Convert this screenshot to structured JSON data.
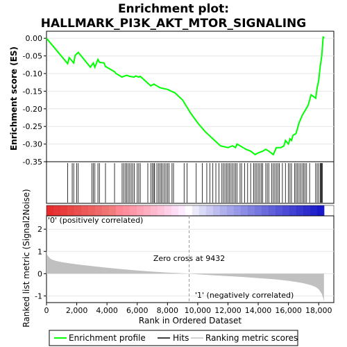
{
  "chart_data": {
    "type": "line",
    "title_line1": "Enrichment plot:",
    "title_line2": "HALLMARK_PI3K_AKT_MTOR_SIGNALING",
    "es_panel": {
      "ylabel": "Enrichment score (ES)",
      "ylim": [
        -0.35,
        0.02
      ],
      "yticks": [
        0.0,
        -0.05,
        -0.1,
        -0.15,
        -0.2,
        -0.25,
        -0.3,
        -0.35
      ],
      "ytick_labels": [
        "0.00",
        "-0.05",
        "-0.10",
        "-0.15",
        "-0.20",
        "-0.25",
        "-0.30",
        "-0.35"
      ],
      "grid": true,
      "series": {
        "name": "Enrichment profile",
        "color": "#00ff00",
        "x": [
          0,
          1400,
          1500,
          1800,
          1900,
          2100,
          2900,
          3100,
          3200,
          3400,
          3500,
          3800,
          3900,
          4500,
          4600,
          5000,
          5100,
          5300,
          5500,
          5800,
          5900,
          6100,
          6200,
          6900,
          7100,
          7300,
          7500,
          8000,
          8500,
          9000,
          9500,
          10000,
          10500,
          11000,
          11500,
          12000,
          12300,
          12500,
          12600,
          12800,
          13000,
          13200,
          13500,
          13800,
          14000,
          14300,
          14500,
          14700,
          15000,
          15200,
          15500,
          15700,
          15800,
          16000,
          16100,
          16200,
          16300,
          16500,
          16700,
          16900,
          17100,
          17300,
          17500,
          17800,
          17900,
          18000,
          18100,
          18200,
          18300,
          18350
        ],
        "y": [
          0.0,
          -0.072,
          -0.055,
          -0.07,
          -0.048,
          -0.04,
          -0.082,
          -0.07,
          -0.082,
          -0.06,
          -0.068,
          -0.07,
          -0.08,
          -0.095,
          -0.1,
          -0.11,
          -0.108,
          -0.105,
          -0.108,
          -0.11,
          -0.107,
          -0.11,
          -0.108,
          -0.135,
          -0.13,
          -0.135,
          -0.14,
          -0.145,
          -0.155,
          -0.175,
          -0.21,
          -0.24,
          -0.265,
          -0.285,
          -0.305,
          -0.31,
          -0.305,
          -0.31,
          -0.3,
          -0.305,
          -0.31,
          -0.315,
          -0.32,
          -0.33,
          -0.325,
          -0.32,
          -0.315,
          -0.32,
          -0.33,
          -0.31,
          -0.31,
          -0.305,
          -0.29,
          -0.3,
          -0.285,
          -0.29,
          -0.275,
          -0.27,
          -0.24,
          -0.22,
          -0.205,
          -0.19,
          -0.16,
          -0.17,
          -0.14,
          -0.12,
          -0.08,
          -0.05,
          0.005,
          0.0
        ]
      }
    },
    "hits_panel": {
      "name": "Hits",
      "hit_positions": [
        1400,
        1700,
        1800,
        2000,
        2100,
        3000,
        3100,
        3200,
        3400,
        3500,
        3900,
        4500,
        5000,
        5100,
        5200,
        5300,
        5400,
        5500,
        5600,
        5700,
        5800,
        6000,
        6100,
        6200,
        6700,
        6900,
        7000,
        7100,
        7150,
        7300,
        7400,
        7500,
        7600,
        7700,
        7800,
        7900,
        8000,
        8100,
        8300,
        8400,
        9100,
        9300,
        9900,
        10300,
        10600,
        10800,
        11000,
        11200,
        11400,
        11600,
        11700,
        11800,
        11900,
        12000,
        12100,
        12200,
        12300,
        12400,
        12500,
        12600,
        12800,
        12900,
        13100,
        13300,
        13500,
        13700,
        13800,
        13900,
        14000,
        14100,
        14200,
        14300,
        14500,
        14600,
        14700,
        14900,
        15000,
        15100,
        15200,
        15300,
        15400,
        15600,
        15800,
        16000,
        16100,
        16200,
        16400,
        16500,
        16600,
        16700,
        16800,
        16900,
        17000,
        17100,
        17200,
        17400,
        17800,
        17900,
        18000,
        18100,
        18150,
        18200,
        18250
      ]
    },
    "metric_panel": {
      "ylabel": "Ranked list metric (Signal2Noise)",
      "ylim": [
        -1.3,
        2.6
      ],
      "yticks": [
        2,
        1,
        0,
        -1
      ],
      "ytick_labels": [
        "2",
        "1",
        "0",
        "-1"
      ],
      "grid": true,
      "label_pos": "'0' (positively correlated)",
      "label_neg": "'1' (negatively correlated)",
      "zero_cross_text": "Zero cross at 9432",
      "zero_cross": 9432,
      "series": {
        "name": "Ranking metric scores",
        "color": "#c0c0c0",
        "x": [
          0,
          50,
          150,
          300,
          600,
          1000,
          2000,
          3000,
          4000,
          5000,
          6000,
          7000,
          8000,
          9000,
          9432,
          10000,
          11000,
          12000,
          13000,
          14000,
          15000,
          16000,
          16500,
          17000,
          17500,
          17800,
          18000,
          18100,
          18200,
          18300,
          18350
        ],
        "y": [
          1.0,
          0.85,
          0.75,
          0.65,
          0.58,
          0.52,
          0.42,
          0.34,
          0.27,
          0.2,
          0.14,
          0.09,
          0.05,
          0.02,
          0.0,
          -0.03,
          -0.07,
          -0.11,
          -0.15,
          -0.2,
          -0.25,
          -0.32,
          -0.37,
          -0.43,
          -0.52,
          -0.6,
          -0.7,
          -0.8,
          -0.9,
          -1.1,
          -1.25
        ]
      }
    },
    "xaxis": {
      "label": "Rank in Ordered Dataset",
      "xlim": [
        0,
        19000
      ],
      "xticks": [
        0,
        2000,
        4000,
        6000,
        8000,
        10000,
        12000,
        14000,
        16000,
        18000
      ],
      "xtick_labels": [
        "0",
        "2,000",
        "4,000",
        "6,000",
        "8,000",
        "10,000",
        "12,000",
        "14,000",
        "16,000",
        "18,000"
      ],
      "n_genes": 18350
    },
    "legend": {
      "placement": "bottom",
      "items": [
        {
          "label": "Enrichment profile",
          "color": "#00ff00"
        },
        {
          "label": "Hits",
          "color": "#000000"
        },
        {
          "label": "Ranking metric scores",
          "color": "#c0c0c0"
        }
      ]
    }
  }
}
